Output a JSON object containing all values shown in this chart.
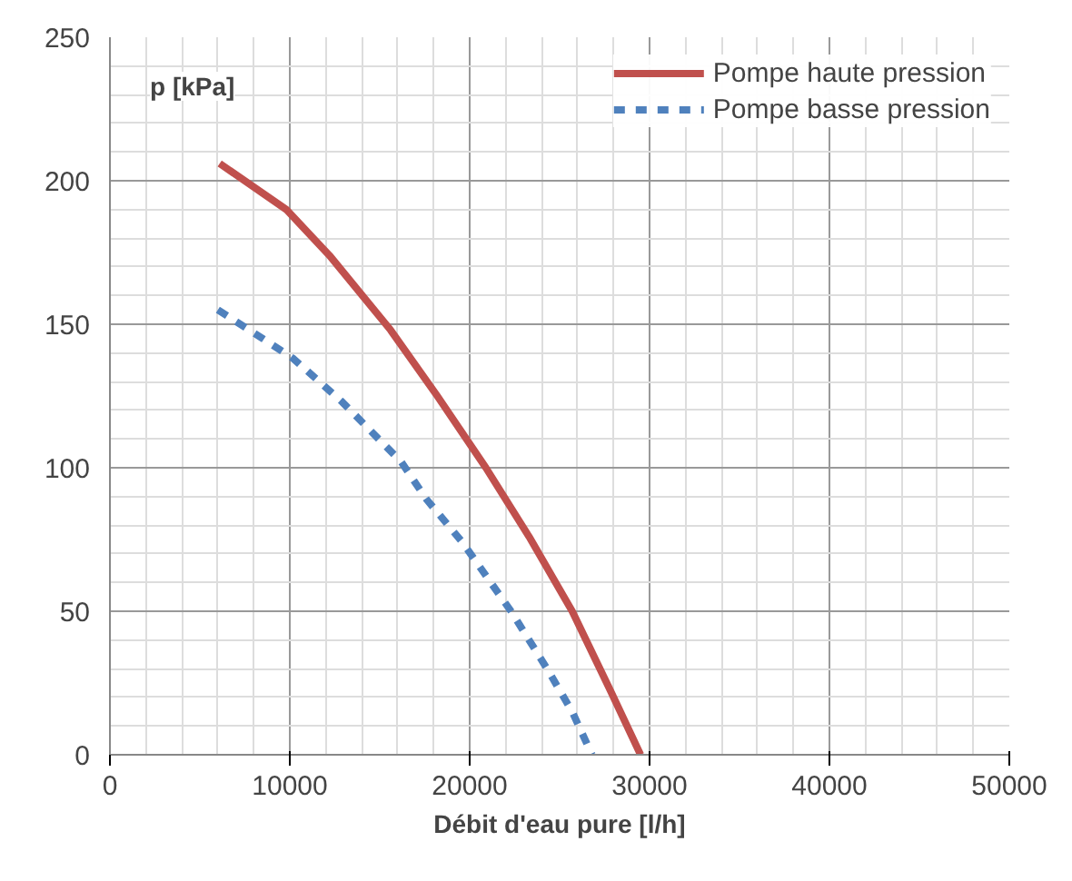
{
  "chart_data": {
    "type": "line",
    "xlabel": "Débit d'eau pure [l/h]",
    "ylabel": "p [kPa]",
    "xlim": [
      0,
      50000
    ],
    "ylim": [
      0,
      250
    ],
    "xticks": [
      0,
      10000,
      20000,
      30000,
      40000,
      50000
    ],
    "yticks": [
      0,
      50,
      100,
      150,
      200,
      250
    ],
    "grid": true,
    "legend": "top right",
    "series": [
      {
        "name": "Pompe haute pression",
        "color": "#c0504d",
        "line_style": "solid",
        "x": [
          6100,
          9800,
          12200,
          15600,
          18200,
          20900,
          23300,
          25700,
          27700,
          29500
        ],
        "values": [
          206,
          190,
          174,
          148,
          125,
          100,
          76,
          50,
          24,
          0
        ]
      },
      {
        "name": "Pompe basse pression",
        "color": "#4f81bd",
        "line_style": "dashed",
        "x": [
          6000,
          8500,
          10200,
          12900,
          16200,
          17600,
          19600,
          22300,
          24300,
          25700,
          26800
        ],
        "values": [
          155,
          145,
          138,
          123,
          102,
          89,
          74,
          50,
          30,
          15,
          0
        ]
      }
    ]
  }
}
